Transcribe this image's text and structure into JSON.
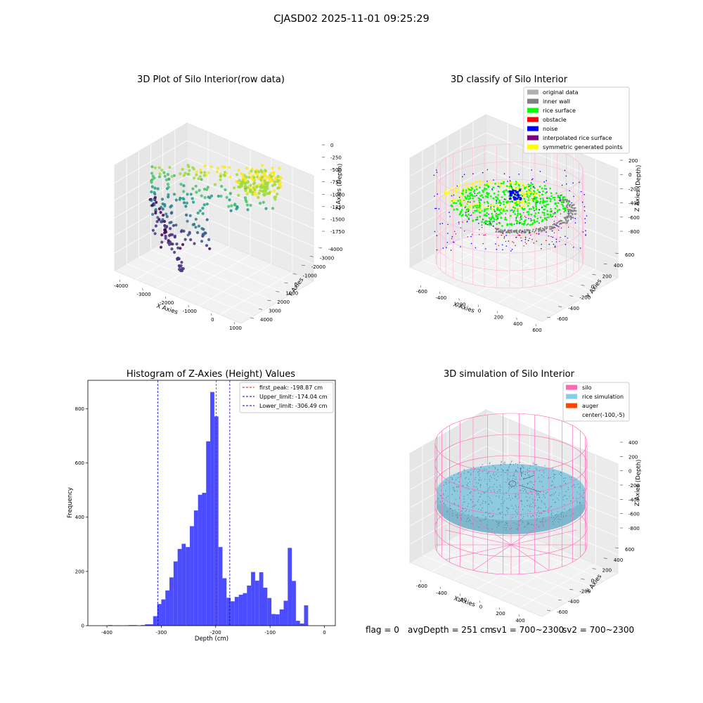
{
  "suptitle": "CJASD02 2025-11-01 09:25:29",
  "status": {
    "flag": "flag = 0",
    "avg_depth": "avgDepth = 251 cm",
    "sv1": "sv1 = 700~2300",
    "sv2": "sv2 = 700~2300"
  },
  "chart_data": [
    {
      "type": "scatter",
      "title": "3D Plot of Silo Interior(row data)",
      "projection": "3d",
      "xlabel": "X Axies",
      "ylabel": "Y Axies",
      "zlabel": "Z Axies (Depth)",
      "xticks": [
        "-4000",
        "-3000",
        "-2000",
        "-1000",
        "0",
        "1000"
      ],
      "yticks": [
        "-4000",
        "-3000",
        "-2000",
        "-1000",
        "0",
        "1000",
        "2000",
        "3000",
        "4000"
      ],
      "zticks": [
        "0",
        "-250",
        "-500",
        "-750",
        "-1000",
        "-1250",
        "-1500",
        "-1750"
      ],
      "xlim": [
        -4500,
        1000
      ],
      "ylim": [
        -4000,
        4000
      ],
      "zlim": [
        -1900,
        100
      ],
      "colormap": "viridis",
      "grid": true
    },
    {
      "type": "scatter",
      "title": "3D classify of Silo Interior",
      "projection": "3d",
      "xlabel": "X Axies",
      "ylabel": "Y Axies",
      "zlabel": "Z Axies (Depth)",
      "xticks": [
        "-600",
        "-400",
        "-200",
        "0",
        "200",
        "400",
        "600"
      ],
      "yticks": [
        "-600",
        "-400",
        "-200",
        "0",
        "200",
        "400",
        "600"
      ],
      "zticks": [
        "200",
        "0",
        "-200",
        "-400",
        "-600",
        "-800"
      ],
      "legend_position": "top-right",
      "legend": [
        {
          "label": "original data",
          "color": "#b0b0b0"
        },
        {
          "label": "inner wall",
          "color": "#808080"
        },
        {
          "label": "rice surface",
          "color": "#00ff00"
        },
        {
          "label": "obstacle",
          "color": "#ff0000"
        },
        {
          "label": "noise",
          "color": "#0000ff"
        },
        {
          "label": "interpolated rice surface",
          "color": "#800080"
        },
        {
          "label": "symmetric generated points",
          "color": "#ffff00"
        }
      ],
      "grid": true
    },
    {
      "type": "bar",
      "title": "Histogram of Z-Axies (Height) Values",
      "xlabel": "Depth (cm)",
      "ylabel": "Frequency",
      "xlim": [
        -435,
        20
      ],
      "ylim": [
        0,
        905
      ],
      "xticks": [
        -400,
        -300,
        -200,
        -100,
        0
      ],
      "yticks": [
        0,
        200,
        400,
        600,
        800
      ],
      "bin_width": 7.5,
      "bar_color": "#4c4cff",
      "bins": [
        {
          "start": -397.5,
          "count": 2
        },
        {
          "start": -390.0,
          "count": 0
        },
        {
          "start": -382.5,
          "count": 1
        },
        {
          "start": -375.0,
          "count": 0
        },
        {
          "start": -367.5,
          "count": 1
        },
        {
          "start": -360.0,
          "count": 2
        },
        {
          "start": -352.5,
          "count": 2
        },
        {
          "start": -345.0,
          "count": 0
        },
        {
          "start": -337.5,
          "count": 2
        },
        {
          "start": -330.0,
          "count": 5
        },
        {
          "start": -322.5,
          "count": 5
        },
        {
          "start": -315.0,
          "count": 35
        },
        {
          "start": -307.5,
          "count": 80
        },
        {
          "start": -300.0,
          "count": 97
        },
        {
          "start": -292.5,
          "count": 130
        },
        {
          "start": -285.0,
          "count": 178
        },
        {
          "start": -277.5,
          "count": 237
        },
        {
          "start": -270.0,
          "count": 283
        },
        {
          "start": -262.5,
          "count": 302
        },
        {
          "start": -255.0,
          "count": 290
        },
        {
          "start": -247.5,
          "count": 367
        },
        {
          "start": -240.0,
          "count": 425
        },
        {
          "start": -232.5,
          "count": 483
        },
        {
          "start": -225.0,
          "count": 490
        },
        {
          "start": -217.5,
          "count": 680
        },
        {
          "start": -210.0,
          "count": 862
        },
        {
          "start": -202.5,
          "count": 772
        },
        {
          "start": -195.0,
          "count": 290
        },
        {
          "start": -187.5,
          "count": 175
        },
        {
          "start": -180.0,
          "count": 103
        },
        {
          "start": -172.5,
          "count": 90
        },
        {
          "start": -165.0,
          "count": 106
        },
        {
          "start": -157.5,
          "count": 114
        },
        {
          "start": -150.0,
          "count": 120
        },
        {
          "start": -142.5,
          "count": 148
        },
        {
          "start": -135.0,
          "count": 198
        },
        {
          "start": -127.5,
          "count": 166
        },
        {
          "start": -120.0,
          "count": 197
        },
        {
          "start": -112.5,
          "count": 140
        },
        {
          "start": -105.0,
          "count": 102
        },
        {
          "start": -97.5,
          "count": 43
        },
        {
          "start": -90.0,
          "count": 42
        },
        {
          "start": -82.5,
          "count": 60
        },
        {
          "start": -75.0,
          "count": 92
        },
        {
          "start": -67.5,
          "count": 287
        },
        {
          "start": -60.0,
          "count": 165
        },
        {
          "start": -52.5,
          "count": 18
        },
        {
          "start": -45.0,
          "count": 8
        },
        {
          "start": -37.5,
          "count": 75
        }
      ],
      "vlines": [
        {
          "x": -198.87,
          "color": "#ff0000",
          "label": "first_peak: -198.87 cm"
        },
        {
          "x": -174.04,
          "color": "#0000cc",
          "label": "Upper_limit: -174.04 cm"
        },
        {
          "x": -306.49,
          "color": "#0000cc",
          "label": "Lower_limit: -306.49 cm"
        }
      ],
      "legend_position": "top-right"
    },
    {
      "type": "scatter",
      "title": "3D simulation of Silo Interior",
      "projection": "3d",
      "xlabel": "X Axies",
      "ylabel": "Y Axies",
      "zlabel": "Z Axies (Depth)",
      "xticks": [
        "-600",
        "-400",
        "-200",
        "0",
        "200",
        "400"
      ],
      "yticks": [
        "-600",
        "-400",
        "-200",
        "0",
        "200",
        "400",
        "600"
      ],
      "zticks": [
        "400",
        "200",
        "0",
        "-200",
        "-400",
        "-600",
        "-800"
      ],
      "legend_position": "top-right",
      "legend": [
        {
          "label": "silo",
          "color": "#ff69b4"
        },
        {
          "label": "rice simulation",
          "color": "#87ceeb"
        },
        {
          "label": "auger",
          "color": "#ff4500"
        },
        {
          "label": "center(-100,-5)",
          "color": ""
        }
      ],
      "grid": true
    }
  ]
}
